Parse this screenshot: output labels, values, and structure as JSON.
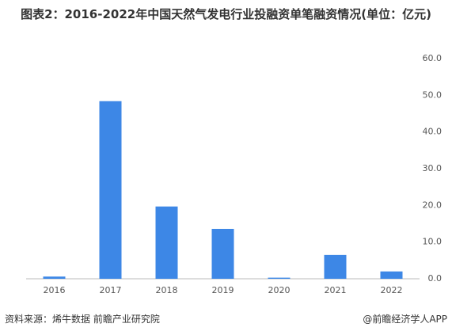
{
  "chart_data": {
    "type": "bar",
    "title": "图表2：2016-2022年中国天然气发电行业投融资单笔融资情况(单位：亿元)",
    "categories": [
      "2016",
      "2017",
      "2018",
      "2019",
      "2020",
      "2021",
      "2022"
    ],
    "values": [
      0.6,
      48.4,
      19.7,
      13.6,
      0.3,
      6.5,
      2.0
    ],
    "color": "#3d87e6",
    "ylim": [
      0,
      60
    ],
    "yticks": [
      {
        "value": 0,
        "label": "0.0"
      },
      {
        "value": 10,
        "label": "10.0"
      },
      {
        "value": 20,
        "label": "20.0"
      },
      {
        "value": 30,
        "label": "30.0"
      },
      {
        "value": 40,
        "label": "40.0"
      },
      {
        "value": 50,
        "label": "50.0"
      },
      {
        "value": 60,
        "label": "60.0"
      }
    ],
    "grid": false,
    "source": "资料来源：烯牛数据 前瞻产业研究院",
    "credit": "@前瞻经济学人APP"
  }
}
